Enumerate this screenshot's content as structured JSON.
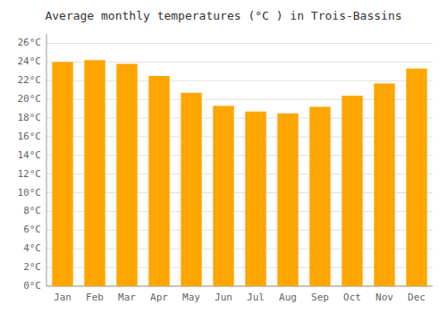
{
  "chart_data": {
    "type": "bar",
    "title": "Average monthly temperatures (°C ) in Trois-Bassins",
    "categories": [
      "Jan",
      "Feb",
      "Mar",
      "Apr",
      "May",
      "Jun",
      "Jul",
      "Aug",
      "Sep",
      "Oct",
      "Nov",
      "Dec"
    ],
    "values": [
      24.0,
      24.2,
      23.8,
      22.5,
      20.7,
      19.3,
      18.7,
      18.5,
      19.2,
      20.4,
      21.7,
      23.3
    ],
    "color": "#FFA500",
    "ylim": [
      0,
      27
    ],
    "yticks": [
      {
        "value": 0,
        "label": "0°C"
      },
      {
        "value": 2,
        "label": "2°C"
      },
      {
        "value": 4,
        "label": "4°C"
      },
      {
        "value": 6,
        "label": "6°C"
      },
      {
        "value": 8,
        "label": "8°C"
      },
      {
        "value": 10,
        "label": "10°C"
      },
      {
        "value": 12,
        "label": "12°C"
      },
      {
        "value": 14,
        "label": "14°C"
      },
      {
        "value": 16,
        "label": "16°C"
      },
      {
        "value": 18,
        "label": "18°C"
      },
      {
        "value": 20,
        "label": "20°C"
      },
      {
        "value": 22,
        "label": "22°C"
      },
      {
        "value": 24,
        "label": "24°C"
      },
      {
        "value": 26,
        "label": "26°C"
      }
    ],
    "grid": true
  }
}
